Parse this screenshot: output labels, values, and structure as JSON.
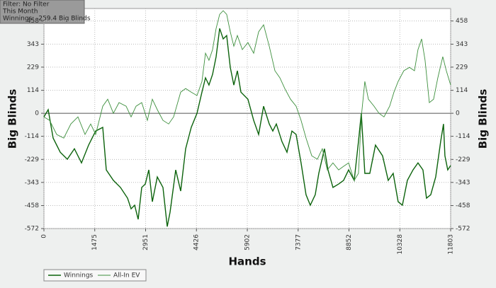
{
  "chart_data": {
    "type": "line",
    "annotations": [
      "Filter: No Filter",
      "This Month",
      "Winnings: -259.4 Big Blinds"
    ],
    "xlabel": "Hands",
    "ylabel": "Big Blinds",
    "xlim": [
      0,
      11803
    ],
    "xticks": [
      0,
      1475,
      2951,
      4426,
      5902,
      7377,
      8852,
      10328,
      11803
    ],
    "ylim": [
      -572,
      520
    ],
    "yticks": [
      -572,
      -458,
      -343,
      -229,
      -114,
      0,
      114,
      229,
      343,
      458
    ],
    "grid": true,
    "legend": "bottom-left",
    "series": [
      {
        "name": "Winnings",
        "color": "#0b620b",
        "x": [
          0,
          123,
          267,
          473,
          678,
          884,
          1090,
          1295,
          1501,
          1706,
          1809,
          2015,
          2220,
          2426,
          2529,
          2632,
          2734,
          2837,
          2940,
          3043,
          3146,
          3290,
          3454,
          3578,
          3660,
          3824,
          3968,
          4112,
          4276,
          4441,
          4585,
          4688,
          4790,
          4893,
          4996,
          5099,
          5202,
          5304,
          5407,
          5510,
          5613,
          5716,
          5921,
          6086,
          6230,
          6374,
          6538,
          6641,
          6744,
          6908,
          7052,
          7196,
          7319,
          7463,
          7607,
          7730,
          7874,
          7977,
          8141,
          8244,
          8388,
          8553,
          8697,
          8841,
          9005,
          9128,
          9211,
          9313,
          9457,
          9622,
          9827,
          9992,
          10136,
          10280,
          10403,
          10547,
          10712,
          10856,
          11000,
          11102,
          11225,
          11369,
          11513,
          11595,
          11636,
          11718,
          11803
        ],
        "values": [
          -18,
          18,
          -123,
          -193,
          -228,
          -176,
          -246,
          -158,
          -88,
          -70,
          -281,
          -333,
          -368,
          -421,
          -474,
          -456,
          -526,
          -368,
          -351,
          -281,
          -439,
          -316,
          -368,
          -562,
          -491,
          -281,
          -386,
          -176,
          -70,
          0,
          105,
          176,
          140,
          193,
          281,
          421,
          369,
          386,
          228,
          140,
          211,
          105,
          70,
          -35,
          -105,
          35,
          -53,
          -88,
          -53,
          -140,
          -193,
          -88,
          -105,
          -246,
          -404,
          -456,
          -404,
          -298,
          -176,
          -281,
          -368,
          -351,
          -333,
          -281,
          -333,
          -140,
          0,
          -298,
          -298,
          -158,
          -211,
          -333,
          -298,
          -439,
          -456,
          -333,
          -281,
          -246,
          -281,
          -421,
          -404,
          -316,
          -140,
          -53,
          -211,
          -281,
          -259
        ]
      },
      {
        "name": "All-In EV",
        "color": "#3d8f3d",
        "x": [
          0,
          164,
          370,
          576,
          781,
          987,
          1193,
          1357,
          1501,
          1706,
          1850,
          2015,
          2179,
          2385,
          2529,
          2673,
          2837,
          3002,
          3146,
          3290,
          3454,
          3619,
          3762,
          3968,
          4112,
          4276,
          4441,
          4585,
          4688,
          4790,
          4893,
          4996,
          5099,
          5202,
          5304,
          5407,
          5510,
          5613,
          5757,
          5921,
          6086,
          6230,
          6374,
          6538,
          6703,
          6847,
          6990,
          7155,
          7319,
          7463,
          7607,
          7772,
          7936,
          8080,
          8224,
          8388,
          8553,
          8697,
          8841,
          9005,
          9128,
          9211,
          9313,
          9416,
          9581,
          9725,
          9869,
          10033,
          10157,
          10280,
          10444,
          10609,
          10753,
          10856,
          10959,
          11061,
          11184,
          11308,
          11431,
          11575,
          11678,
          11803
        ],
        "values": [
          -18,
          -35,
          -105,
          -123,
          -53,
          -18,
          -105,
          -53,
          -105,
          35,
          70,
          0,
          53,
          35,
          -18,
          35,
          53,
          -35,
          70,
          18,
          -35,
          -53,
          -18,
          105,
          123,
          105,
          88,
          158,
          298,
          263,
          316,
          421,
          491,
          509,
          491,
          404,
          333,
          386,
          316,
          351,
          298,
          404,
          439,
          333,
          211,
          176,
          123,
          70,
          35,
          -35,
          -123,
          -211,
          -228,
          -176,
          -281,
          -246,
          -281,
          -263,
          -246,
          -333,
          -298,
          -18,
          158,
          70,
          35,
          0,
          -18,
          35,
          105,
          158,
          211,
          228,
          211,
          316,
          369,
          263,
          53,
          70,
          176,
          281,
          211,
          140
        ]
      }
    ]
  }
}
